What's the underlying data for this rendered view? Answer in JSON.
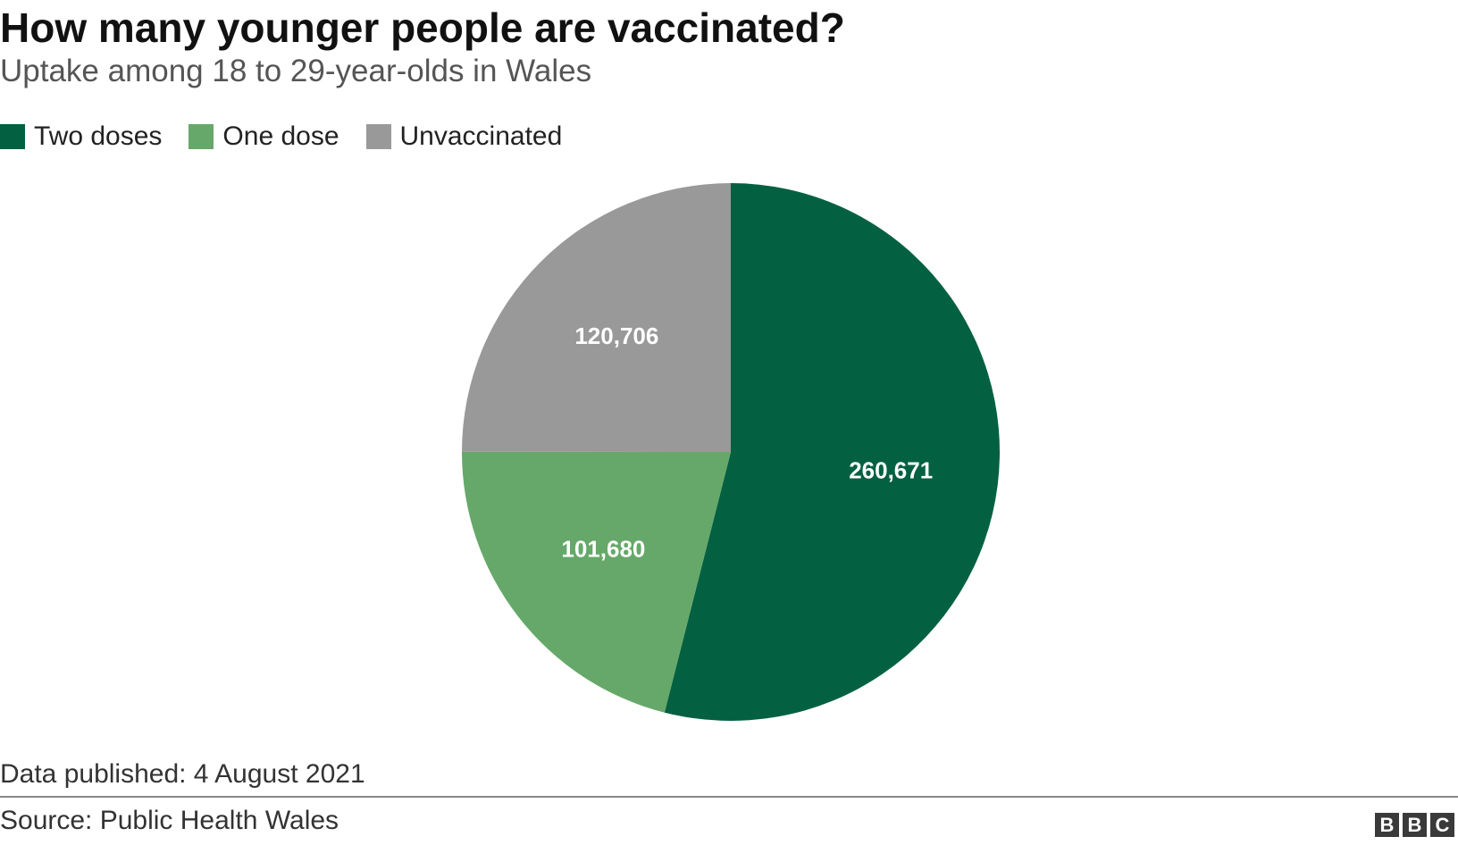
{
  "header": {
    "title": "How many younger people are vaccinated?",
    "subtitle": "Uptake among 18 to 29-year-olds in Wales"
  },
  "legend": [
    {
      "label": "Two doses",
      "color": "#036141"
    },
    {
      "label": "One dose",
      "color": "#66a869"
    },
    {
      "label": "Unvaccinated",
      "color": "#999999"
    }
  ],
  "chart_data": {
    "type": "pie",
    "title": "How many younger people are vaccinated?",
    "subtitle": "Uptake among 18 to 29-year-olds in Wales",
    "categories": [
      "Two doses",
      "One dose",
      "Unvaccinated"
    ],
    "values": [
      260671,
      101680,
      120706
    ],
    "labels": [
      "260,671",
      "101,680",
      "120,706"
    ],
    "colors": [
      "#036141",
      "#66a869",
      "#999999"
    ],
    "legend_position": "top-left"
  },
  "footer": {
    "published": "Data published: 4 August 2021",
    "source": "Source: Public Health Wales",
    "logo": [
      "B",
      "B",
      "C"
    ]
  }
}
